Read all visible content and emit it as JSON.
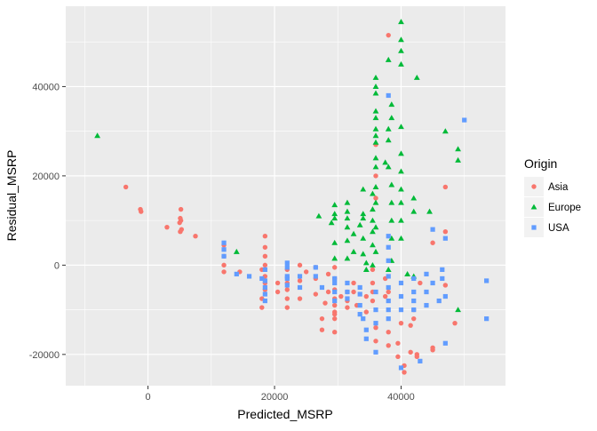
{
  "chart_data": {
    "type": "scatter",
    "xlabel": "Predicted_MSRP",
    "ylabel": "Residual_MSRP",
    "xlim": [
      -13000,
      56500
    ],
    "ylim": [
      -27000,
      58000
    ],
    "x_ticks": [
      0,
      20000,
      40000
    ],
    "y_ticks": [
      -20000,
      0,
      20000,
      40000
    ],
    "grid": true,
    "legend": {
      "title": "Origin",
      "position": "right"
    },
    "series": [
      {
        "name": "Asia",
        "color": "#F8766D",
        "shape": "circle",
        "points": [
          [
            -3500,
            17500
          ],
          [
            -1200,
            12500
          ],
          [
            -1100,
            12000
          ],
          [
            3000,
            8500
          ],
          [
            5200,
            12500
          ],
          [
            5100,
            10500
          ],
          [
            5200,
            10000
          ],
          [
            5000,
            9500
          ],
          [
            5300,
            8000
          ],
          [
            5100,
            7500
          ],
          [
            7500,
            6500
          ],
          [
            12000,
            4500
          ],
          [
            12000,
            2000
          ],
          [
            12000,
            0
          ],
          [
            12000,
            -1500
          ],
          [
            14500,
            -1500
          ],
          [
            18000,
            -1000
          ],
          [
            18500,
            6500
          ],
          [
            18500,
            4000
          ],
          [
            18500,
            2000
          ],
          [
            18500,
            0
          ],
          [
            18500,
            -2500
          ],
          [
            18500,
            -4000
          ],
          [
            18500,
            -5500
          ],
          [
            18000,
            -7500
          ],
          [
            18000,
            -9500
          ],
          [
            20500,
            -4000
          ],
          [
            20500,
            -6000
          ],
          [
            22000,
            -1000
          ],
          [
            22000,
            -4000
          ],
          [
            22000,
            -5500
          ],
          [
            22000,
            -7500
          ],
          [
            22000,
            -9500
          ],
          [
            24000,
            0
          ],
          [
            24000,
            -3500
          ],
          [
            24000,
            -7500
          ],
          [
            25000,
            -1500
          ],
          [
            26500,
            -500
          ],
          [
            26500,
            -3000
          ],
          [
            26500,
            -6500
          ],
          [
            27500,
            -12000
          ],
          [
            27500,
            -14500
          ],
          [
            28000,
            -8500
          ],
          [
            28500,
            -2000
          ],
          [
            28500,
            -6000
          ],
          [
            29500,
            -500
          ],
          [
            29500,
            -3000
          ],
          [
            29500,
            -5500
          ],
          [
            29500,
            -7500
          ],
          [
            29500,
            -9000
          ],
          [
            29500,
            -10500
          ],
          [
            29500,
            -11000
          ],
          [
            29500,
            -12000
          ],
          [
            29500,
            -15000
          ],
          [
            30500,
            -7000
          ],
          [
            31500,
            -6000
          ],
          [
            31500,
            -8000
          ],
          [
            31500,
            -9500
          ],
          [
            32500,
            -4000
          ],
          [
            32500,
            -6000
          ],
          [
            33000,
            -9000
          ],
          [
            34500,
            -7000
          ],
          [
            34500,
            -10500
          ],
          [
            35500,
            -1000
          ],
          [
            35500,
            -4000
          ],
          [
            35500,
            -6000
          ],
          [
            35500,
            -8000
          ],
          [
            36000,
            27000
          ],
          [
            36000,
            20000
          ],
          [
            36000,
            15000
          ],
          [
            36000,
            -14000
          ],
          [
            36000,
            -17000
          ],
          [
            37500,
            -3000
          ],
          [
            37500,
            -7000
          ],
          [
            38000,
            51500
          ],
          [
            38000,
            -6000
          ],
          [
            38000,
            -15000
          ],
          [
            38000,
            -18000
          ],
          [
            39500,
            -17500
          ],
          [
            39500,
            -20500
          ],
          [
            40000,
            -13000
          ],
          [
            40500,
            -22500
          ],
          [
            40500,
            -24000
          ],
          [
            41500,
            -13500
          ],
          [
            41500,
            -19500
          ],
          [
            42000,
            -10000
          ],
          [
            42000,
            -12000
          ],
          [
            42500,
            -20000
          ],
          [
            42500,
            -20500
          ],
          [
            43000,
            -4000
          ],
          [
            45000,
            -18500
          ],
          [
            45000,
            -19000
          ],
          [
            45000,
            5000
          ],
          [
            47000,
            17500
          ],
          [
            47000,
            7500
          ],
          [
            47000,
            -4500
          ],
          [
            48500,
            -13000
          ]
        ]
      },
      {
        "name": "Europe",
        "color": "#00BA38",
        "shape": "triangle",
        "points": [
          [
            -8000,
            29000
          ],
          [
            14000,
            3000
          ],
          [
            27000,
            11000
          ],
          [
            29000,
            9500
          ],
          [
            29500,
            13500
          ],
          [
            29500,
            11500
          ],
          [
            29500,
            10500
          ],
          [
            29500,
            5000
          ],
          [
            29500,
            1500
          ],
          [
            31500,
            14000
          ],
          [
            31500,
            12000
          ],
          [
            31500,
            10500
          ],
          [
            31500,
            8500
          ],
          [
            31500,
            5500
          ],
          [
            31500,
            1500
          ],
          [
            32500,
            7000
          ],
          [
            32500,
            3000
          ],
          [
            33500,
            9000
          ],
          [
            34000,
            17000
          ],
          [
            34000,
            11500
          ],
          [
            34000,
            10500
          ],
          [
            34000,
            6000
          ],
          [
            34000,
            2500
          ],
          [
            34500,
            500
          ],
          [
            34500,
            -1000
          ],
          [
            35500,
            16000
          ],
          [
            35500,
            12500
          ],
          [
            35500,
            10000
          ],
          [
            35500,
            7500
          ],
          [
            35500,
            4500
          ],
          [
            35500,
            0
          ],
          [
            36000,
            42000
          ],
          [
            36000,
            40000
          ],
          [
            36000,
            38500
          ],
          [
            36000,
            34500
          ],
          [
            36000,
            33000
          ],
          [
            36000,
            30500
          ],
          [
            36000,
            29000
          ],
          [
            36000,
            27500
          ],
          [
            36000,
            24000
          ],
          [
            36000,
            22000
          ],
          [
            36000,
            17500
          ],
          [
            36000,
            14000
          ],
          [
            36000,
            8500
          ],
          [
            36000,
            3000
          ],
          [
            37500,
            23000
          ],
          [
            38000,
            46000
          ],
          [
            38000,
            30500
          ],
          [
            38000,
            28000
          ],
          [
            38000,
            22000
          ],
          [
            38000,
            -1000
          ],
          [
            38500,
            36000
          ],
          [
            38500,
            33000
          ],
          [
            38500,
            18000
          ],
          [
            38500,
            14000
          ],
          [
            38500,
            10000
          ],
          [
            38500,
            6000
          ],
          [
            38500,
            1000
          ],
          [
            40000,
            54500
          ],
          [
            40000,
            50500
          ],
          [
            40000,
            48000
          ],
          [
            40000,
            45000
          ],
          [
            40000,
            31000
          ],
          [
            40000,
            25000
          ],
          [
            40000,
            21000
          ],
          [
            40000,
            17000
          ],
          [
            40000,
            14000
          ],
          [
            40000,
            10000
          ],
          [
            40000,
            6000
          ],
          [
            41000,
            -2000
          ],
          [
            42000,
            15000
          ],
          [
            42000,
            12000
          ],
          [
            42000,
            -2500
          ],
          [
            42500,
            42000
          ],
          [
            44500,
            12000
          ],
          [
            47000,
            30000
          ],
          [
            49000,
            26000
          ],
          [
            49000,
            23500
          ],
          [
            49000,
            -10000
          ]
        ]
      },
      {
        "name": "USA",
        "color": "#619CFF",
        "shape": "square",
        "points": [
          [
            12000,
            5000
          ],
          [
            12000,
            3500
          ],
          [
            12000,
            2000
          ],
          [
            14000,
            -2000
          ],
          [
            16000,
            -2500
          ],
          [
            18000,
            -3000
          ],
          [
            18500,
            -1000
          ],
          [
            18500,
            -3500
          ],
          [
            18500,
            -5000
          ],
          [
            18500,
            -6500
          ],
          [
            18500,
            -8000
          ],
          [
            22000,
            500
          ],
          [
            22000,
            -500
          ],
          [
            22000,
            -2500
          ],
          [
            22000,
            -3000
          ],
          [
            22000,
            -4500
          ],
          [
            24000,
            -2500
          ],
          [
            24000,
            -5000
          ],
          [
            26500,
            -500
          ],
          [
            26500,
            -2500
          ],
          [
            27500,
            -5000
          ],
          [
            29500,
            -3000
          ],
          [
            29500,
            -4000
          ],
          [
            29500,
            -6000
          ],
          [
            29500,
            -8000
          ],
          [
            31500,
            -4000
          ],
          [
            31500,
            -6000
          ],
          [
            31500,
            -7500
          ],
          [
            33500,
            -5000
          ],
          [
            33500,
            -6500
          ],
          [
            33500,
            -9000
          ],
          [
            33500,
            -11000
          ],
          [
            34000,
            -12000
          ],
          [
            34500,
            -14500
          ],
          [
            34500,
            -16500
          ],
          [
            36000,
            -6000
          ],
          [
            36000,
            -10000
          ],
          [
            36000,
            -13000
          ],
          [
            36000,
            -19500
          ],
          [
            38000,
            38000
          ],
          [
            38000,
            6500
          ],
          [
            38000,
            4000
          ],
          [
            38000,
            1000
          ],
          [
            38000,
            -2500
          ],
          [
            38000,
            -5000
          ],
          [
            38000,
            -8000
          ],
          [
            38000,
            -10000
          ],
          [
            38000,
            -12000
          ],
          [
            40000,
            -4000
          ],
          [
            40000,
            -7000
          ],
          [
            40000,
            -10000
          ],
          [
            40000,
            -23000
          ],
          [
            42000,
            -3000
          ],
          [
            42000,
            -6000
          ],
          [
            42000,
            -8000
          ],
          [
            42000,
            -10000
          ],
          [
            43000,
            -21500
          ],
          [
            44000,
            -2000
          ],
          [
            44000,
            -6000
          ],
          [
            44000,
            -9000
          ],
          [
            45000,
            8000
          ],
          [
            45000,
            -4000
          ],
          [
            46000,
            -8000
          ],
          [
            46500,
            -1000
          ],
          [
            46500,
            -3000
          ],
          [
            47000,
            -7000
          ],
          [
            47000,
            6000
          ],
          [
            47000,
            -17500
          ],
          [
            50000,
            32500
          ],
          [
            53500,
            -3500
          ],
          [
            53500,
            -12000
          ]
        ]
      }
    ]
  }
}
